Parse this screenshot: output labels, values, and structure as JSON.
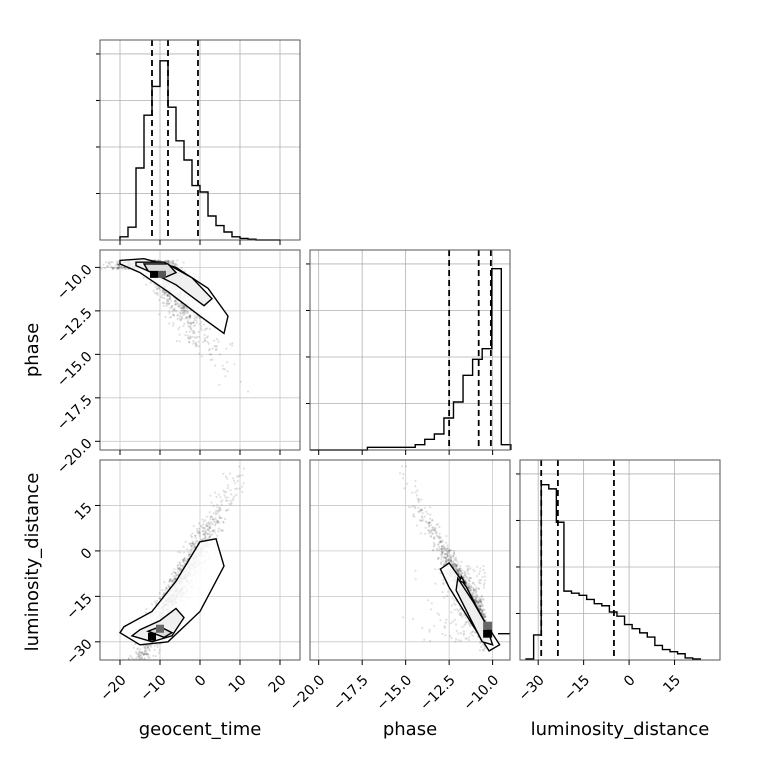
{
  "chart_data": {
    "type": "corner",
    "parameters": [
      "geocent_time",
      "phase",
      "luminosity_distance"
    ],
    "axis_labels": {
      "geocent_time": "geocent_time",
      "phase": "phase",
      "luminosity_distance": "luminosity_distance"
    },
    "ranges": {
      "geocent_time": [
        -25,
        25
      ],
      "phase": [
        -20.5,
        -9.0
      ],
      "luminosity_distance": [
        -36,
        30
      ]
    },
    "ticks": {
      "geocent_time": [
        {
          "v": -20,
          "label": "−20"
        },
        {
          "v": -10,
          "label": "−10"
        },
        {
          "v": 0,
          "label": "0"
        },
        {
          "v": 10,
          "label": "10"
        },
        {
          "v": 20,
          "label": "20"
        }
      ],
      "phase": [
        {
          "v": -20,
          "label": "−20.0"
        },
        {
          "v": -17.5,
          "label": "−17.5"
        },
        {
          "v": -15,
          "label": "−15.0"
        },
        {
          "v": -12.5,
          "label": "−12.5"
        },
        {
          "v": -10,
          "label": "−10.0"
        }
      ],
      "luminosity_distance": [
        {
          "v": -30,
          "label": "−30"
        },
        {
          "v": -15,
          "label": "−15"
        },
        {
          "v": 0,
          "label": "0"
        },
        {
          "v": 15,
          "label": "15"
        }
      ]
    },
    "quantiles": {
      "geocent_time": [
        -12,
        -8,
        -0.5
      ],
      "phase": [
        -12.5,
        -10.8,
        -10.1
      ],
      "luminosity_distance": [
        -29,
        -23.5,
        -5
      ]
    },
    "histograms": {
      "geocent_time": {
        "bin_edges": [
          -20,
          -18,
          -16,
          -14,
          -12,
          -10,
          -8,
          -6,
          -4,
          -2,
          0,
          2,
          4,
          6,
          8,
          10,
          12,
          14,
          16,
          18,
          20
        ],
        "counts": [
          2,
          8,
          45,
          78,
          96,
          112,
          83,
          62,
          50,
          34,
          30,
          15,
          9,
          5,
          2,
          1,
          0.5,
          0,
          0,
          0
        ],
        "ymax": 120
      },
      "phase": {
        "bin_edges": [
          -20.5,
          -19.95,
          -19.4,
          -18.85,
          -18.3,
          -17.75,
          -17.2,
          -16.65,
          -16.1,
          -15.55,
          -15.0,
          -14.45,
          -13.9,
          -13.35,
          -12.8,
          -12.25,
          -11.7,
          -11.15,
          -10.6,
          -10.05,
          -9.5,
          -8.95
        ],
        "counts": [
          0,
          0,
          0,
          0,
          0,
          0,
          0.5,
          0.5,
          0.5,
          0.5,
          0.5,
          1,
          2,
          3,
          6,
          9,
          14,
          17,
          19,
          34,
          1
        ],
        "ymax": 36
      },
      "luminosity_distance": {
        "bin_edges": [
          -34,
          -31.5,
          -29,
          -26.5,
          -24,
          -21.5,
          -19,
          -16.5,
          -14,
          -11.5,
          -9,
          -6.5,
          -4,
          -1.5,
          1,
          3.5,
          6,
          8.5,
          11,
          13.5,
          16,
          18.5,
          21,
          23.5
        ],
        "counts": [
          0.5,
          12,
          84,
          82,
          66,
          33,
          32,
          31,
          29,
          27,
          26,
          23,
          21,
          17,
          15,
          13,
          11,
          7,
          5,
          4,
          3,
          1,
          0.5
        ],
        "ymax": 92
      }
    },
    "grid": true
  }
}
